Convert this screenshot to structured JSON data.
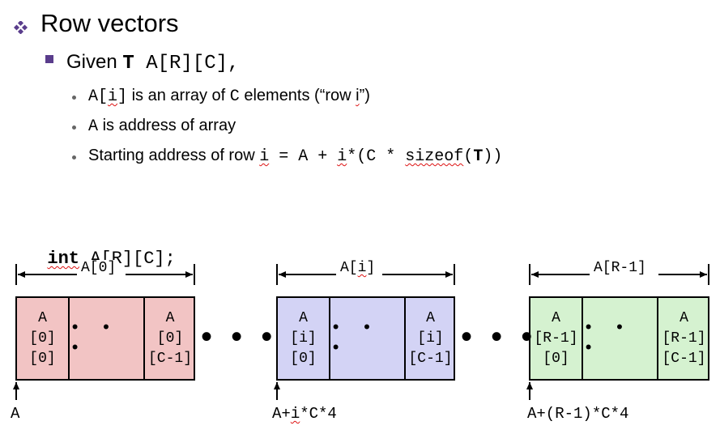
{
  "heading": "Row vectors",
  "given": {
    "prefix": "Given ",
    "type": "T",
    "decl": "A[R][C],",
    "space": " "
  },
  "bullets": {
    "b1": {
      "code_a": "A[",
      "code_i": "i",
      "code_b": "]",
      "t1": " is an array of ",
      "c": "C",
      "t2": " elements (“row ",
      "row_i": "i",
      "t3": "”)"
    },
    "b2": {
      "code": "A",
      "text": " is address of array"
    },
    "b3": {
      "text": "Starting address of row ",
      "i1": "i",
      "m1": " = A + ",
      "i2": "i",
      "m2": "*(C * ",
      "sizeof": "sizeof",
      "m3": "(",
      "T": "T",
      "m4": "))"
    }
  },
  "declaration": {
    "kw": "int",
    "rest": " A[R][C];"
  },
  "blocks": [
    {
      "label": "A[0]",
      "first": [
        "A",
        "[0]",
        "[0]"
      ],
      "middle": "• • •",
      "last": [
        "A",
        "[0]",
        "[C-1]"
      ],
      "address": "A",
      "color": "#f2c4c4"
    },
    {
      "label_a": "A[",
      "label_i": "i",
      "label_b": "]",
      "first": [
        "A",
        "[i]",
        "[0]"
      ],
      "middle": "• • •",
      "last": [
        "A",
        "[i]",
        "[C-1]"
      ],
      "address_a": "A+",
      "address_i": "i",
      "address_b": "*C*4",
      "color": "#d3d3f5"
    },
    {
      "label": "A[R-1]",
      "first": [
        "A",
        "[R-1]",
        "[0]"
      ],
      "middle": "• • •",
      "last": [
        "A",
        "[R-1]",
        "[C-1]"
      ],
      "address": "A+(R-1)*C*4",
      "color": "#d5f2d0"
    }
  ],
  "between_dots": "• • •"
}
